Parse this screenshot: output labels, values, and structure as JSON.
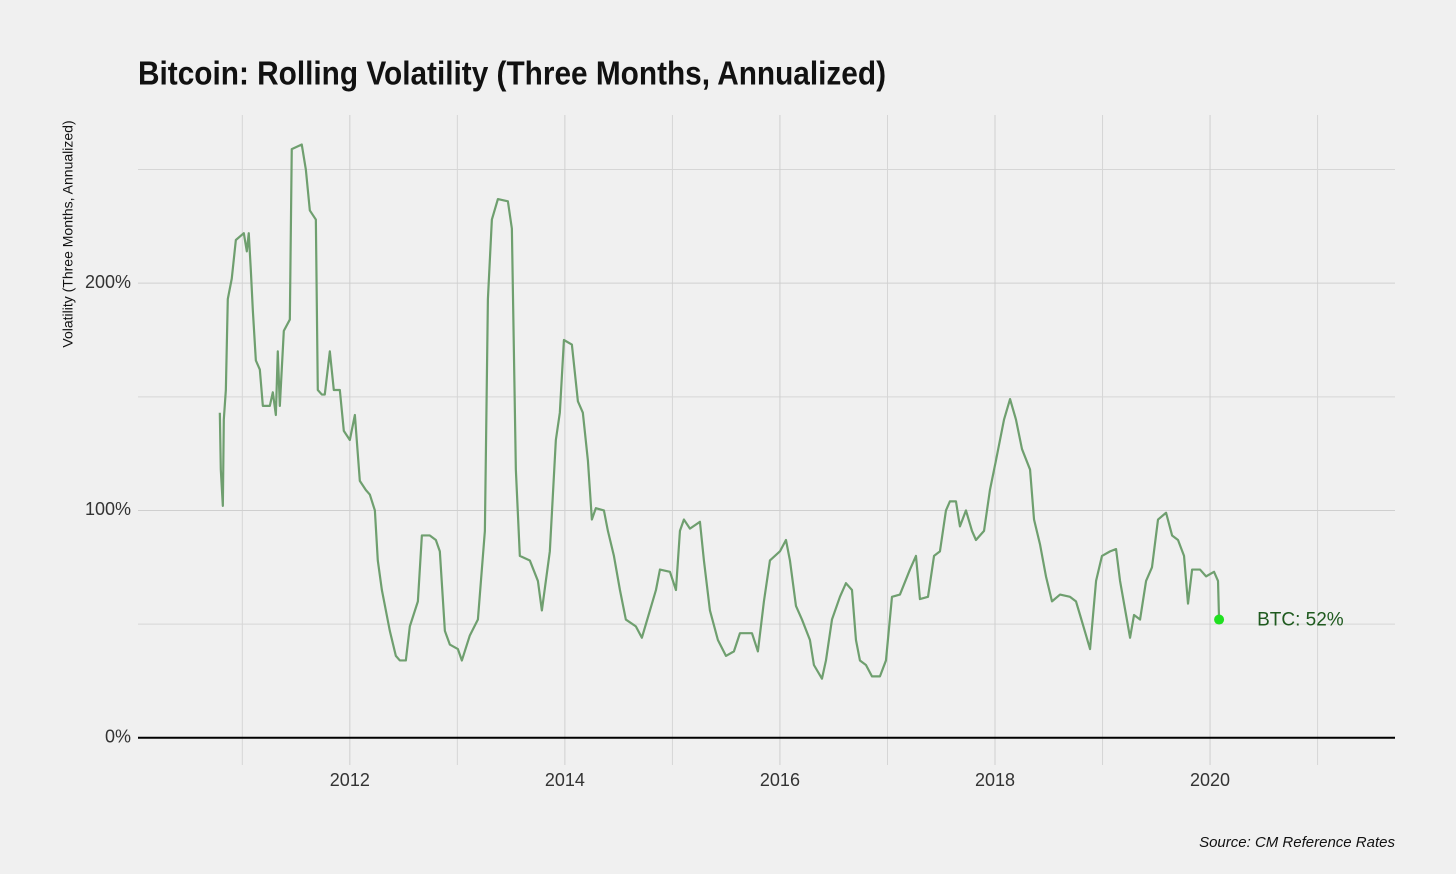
{
  "chart_data": {
    "type": "line",
    "title": "Bitcoin: Rolling Volatility (Three Months, Annualized)",
    "y_label": "Volatility (Three Months, Annualized)",
    "source": "Source: CM Reference Rates",
    "annotation": "BTC: 52%",
    "color": "#6f9f6f",
    "point_color": "#1fe01f",
    "grid": true,
    "xlim": [
      2010.03,
      2021.72
    ],
    "xticks": [
      2012,
      2014,
      2016,
      2018,
      2020
    ],
    "xminorticks": [
      2011,
      2013,
      2015,
      2017,
      2019,
      2021
    ],
    "ylim": [
      -12,
      274
    ],
    "yticks": [
      {
        "value": 0,
        "label": "0%"
      },
      {
        "value": 100,
        "label": "100%"
      },
      {
        "value": 200,
        "label": "200%"
      }
    ],
    "yminorticks": [
      50,
      150,
      250
    ],
    "x": [
      2010.791,
      2010.8,
      2010.819,
      2010.828,
      2010.847,
      2010.865,
      2010.902,
      2010.94,
      2011.014,
      2011.042,
      2011.06,
      2011.079,
      2011.098,
      2011.126,
      2011.163,
      2011.191,
      2011.256,
      2011.284,
      2011.312,
      2011.33,
      2011.349,
      2011.386,
      2011.442,
      2011.46,
      2011.553,
      2011.591,
      2011.628,
      2011.684,
      2011.702,
      2011.74,
      2011.767,
      2011.814,
      2011.851,
      2011.907,
      2011.944,
      2012.0,
      2012.047,
      2012.093,
      2012.149,
      2012.186,
      2012.233,
      2012.26,
      2012.298,
      2012.372,
      2012.428,
      2012.465,
      2012.521,
      2012.558,
      2012.633,
      2012.67,
      2012.744,
      2012.8,
      2012.837,
      2012.884,
      2012.93,
      2013.005,
      2013.042,
      2013.116,
      2013.191,
      2013.256,
      2013.284,
      2013.321,
      2013.377,
      2013.47,
      2013.507,
      2013.544,
      2013.581,
      2013.674,
      2013.749,
      2013.786,
      2013.86,
      2013.916,
      2013.953,
      2013.991,
      2014.065,
      2014.121,
      2014.167,
      2014.214,
      2014.251,
      2014.288,
      2014.363,
      2014.4,
      2014.456,
      2014.512,
      2014.567,
      2014.66,
      2014.716,
      2014.791,
      2014.847,
      2014.884,
      2014.977,
      2015.033,
      2015.07,
      2015.107,
      2015.163,
      2015.256,
      2015.293,
      2015.349,
      2015.423,
      2015.498,
      2015.572,
      2015.628,
      2015.74,
      2015.795,
      2015.851,
      2015.907,
      2016.0,
      2016.056,
      2016.093,
      2016.149,
      2016.205,
      2016.279,
      2016.316,
      2016.391,
      2016.428,
      2016.484,
      2016.558,
      2016.614,
      2016.67,
      2016.707,
      2016.744,
      2016.8,
      2016.856,
      2016.93,
      2016.986,
      2017.042,
      2017.116,
      2017.209,
      2017.265,
      2017.302,
      2017.377,
      2017.433,
      2017.488,
      2017.544,
      2017.581,
      2017.637,
      2017.674,
      2017.73,
      2017.786,
      2017.823,
      2017.898,
      2017.953,
      2018.009,
      2018.084,
      2018.14,
      2018.195,
      2018.251,
      2018.326,
      2018.363,
      2018.419,
      2018.474,
      2018.53,
      2018.605,
      2018.698,
      2018.753,
      2018.791,
      2018.847,
      2018.884,
      2018.94,
      2018.995,
      2019.07,
      2019.126,
      2019.163,
      2019.219,
      2019.256,
      2019.293,
      2019.349,
      2019.405,
      2019.46,
      2019.516,
      2019.591,
      2019.647,
      2019.702,
      2019.758,
      2019.795,
      2019.833,
      2019.907,
      2019.963,
      2020.037,
      2020.074,
      2020.084
    ],
    "values": [
      143,
      118,
      102,
      140,
      153,
      193,
      202,
      219,
      222,
      214,
      222,
      206,
      188,
      166,
      162,
      146,
      146,
      152,
      142,
      170,
      146,
      179,
      184,
      259,
      261,
      250,
      232,
      228,
      153,
      151,
      151,
      170,
      153,
      153,
      135,
      131,
      142,
      113,
      109,
      107,
      100,
      78,
      65,
      47,
      36,
      34,
      34,
      49,
      60,
      89,
      89,
      87,
      82,
      47,
      41,
      39,
      34,
      45,
      52,
      91,
      193,
      228,
      237,
      236,
      224,
      118,
      80,
      78,
      69,
      56,
      82,
      131,
      143,
      175,
      173,
      148,
      143,
      122,
      96,
      101,
      100,
      91,
      80,
      65,
      52,
      49,
      44,
      56,
      65,
      74,
      73,
      65,
      91,
      96,
      92,
      95,
      78,
      56,
      43,
      36,
      38,
      46,
      46,
      38,
      60,
      78,
      82,
      87,
      78,
      58,
      52,
      43,
      32,
      26,
      34,
      52,
      62,
      68,
      65,
      43,
      34,
      32,
      27,
      27,
      34,
      62,
      63,
      74,
      80,
      61,
      62,
      80,
      82,
      100,
      104,
      104,
      93,
      100,
      91,
      87,
      91,
      109,
      122,
      140,
      149,
      140,
      127,
      118,
      96,
      85,
      71,
      60,
      63,
      62,
      60,
      54,
      45,
      39,
      69,
      80,
      82,
      83,
      69,
      54,
      44,
      54,
      52,
      69,
      75,
      96,
      99,
      89,
      87,
      80,
      59,
      74,
      74,
      71,
      73,
      69,
      52
    ]
  }
}
